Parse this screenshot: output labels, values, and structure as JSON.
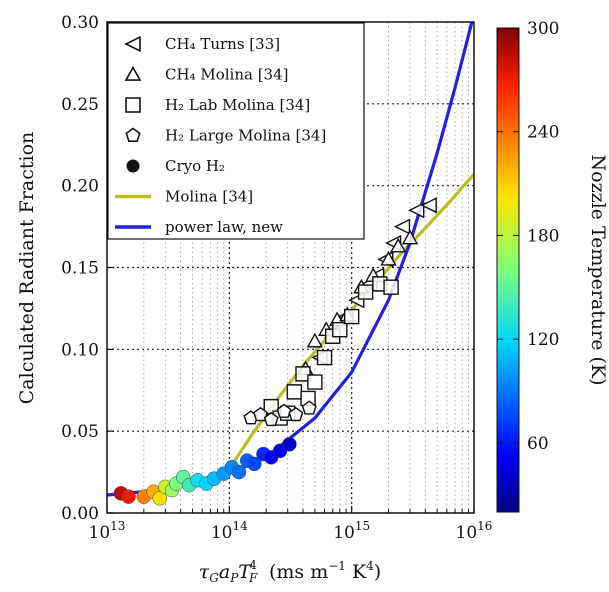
{
  "chart_data": {
    "type": "scatter",
    "xlabel": "τ_G a_P T_F^4 (ms m⁻¹ K⁴)",
    "ylabel": "Calculated Radiant Fraction",
    "x_scale": "log",
    "xlim": [
      10000000000000.0,
      1e+16
    ],
    "ylim": [
      0.0,
      0.3
    ],
    "x_ticks": [
      {
        "value": 10000000000000.0,
        "base": "10",
        "exp": "13"
      },
      {
        "value": 100000000000000.0,
        "base": "10",
        "exp": "14"
      },
      {
        "value": 1000000000000000.0,
        "base": "10",
        "exp": "15"
      },
      {
        "value": 1e+16,
        "base": "10",
        "exp": "16"
      }
    ],
    "y_ticks": [
      "0.00",
      "0.05",
      "0.10",
      "0.15",
      "0.20",
      "0.25",
      "0.30"
    ],
    "grid": "dotted, behind legend",
    "colorbar": {
      "label": "Nozzle Temperature (K)",
      "ticks": [
        "60",
        "120",
        "180",
        "240",
        "300"
      ],
      "range": [
        20,
        300
      ],
      "colormap": "jet"
    },
    "legend": {
      "position": "top-left",
      "entries": [
        {
          "marker": "triangle-left",
          "label": "CH₄ Turns [33]"
        },
        {
          "marker": "triangle-up",
          "label": "CH₄ Molina [34]"
        },
        {
          "marker": "square",
          "label": "H₂ Lab Molina [34]"
        },
        {
          "marker": "pentagon",
          "label": "H₂ Large Molina [34]"
        },
        {
          "marker": "circle",
          "label": "Cryo H₂"
        },
        {
          "marker": "line",
          "color": "#bdbd1f",
          "label": "Molina [34]"
        },
        {
          "marker": "line",
          "color": "#2020dd",
          "label": "power law, new"
        }
      ]
    },
    "series": [
      {
        "name": "CH₄ Turns [33]",
        "marker": "triangle-left",
        "points": [
          [
            1100000000000000.0,
            0.13
          ],
          [
            1400000000000000.0,
            0.14
          ],
          [
            1600000000000000.0,
            0.145
          ],
          [
            1900000000000000.0,
            0.155
          ],
          [
            2200000000000000.0,
            0.165
          ],
          [
            2600000000000000.0,
            0.175
          ],
          [
            3400000000000000.0,
            0.185
          ],
          [
            4300000000000000.0,
            0.188
          ],
          [
            550000000000000.0,
            0.095
          ],
          [
            700000000000000.0,
            0.11
          ],
          [
            900000000000000.0,
            0.12
          ]
        ]
      },
      {
        "name": "CH₄ Molina [34]",
        "marker": "triangle-up",
        "points": [
          [
            420000000000000.0,
            0.088
          ],
          [
            500000000000000.0,
            0.105
          ],
          [
            620000000000000.0,
            0.112
          ],
          [
            760000000000000.0,
            0.118
          ],
          [
            920000000000000.0,
            0.121
          ],
          [
            1200000000000000.0,
            0.138
          ],
          [
            1500000000000000.0,
            0.145
          ],
          [
            2000000000000000.0,
            0.155
          ],
          [
            2400000000000000.0,
            0.163
          ],
          [
            3000000000000000.0,
            0.168
          ]
        ]
      },
      {
        "name": "H₂ Lab Molina [34]",
        "marker": "square",
        "points": [
          [
            220000000000000.0,
            0.065
          ],
          [
            260000000000000.0,
            0.058
          ],
          [
            300000000000000.0,
            0.061
          ],
          [
            340000000000000.0,
            0.074
          ],
          [
            400000000000000.0,
            0.085
          ],
          [
            440000000000000.0,
            0.07
          ],
          [
            500000000000000.0,
            0.08
          ],
          [
            600000000000000.0,
            0.095
          ],
          [
            700000000000000.0,
            0.108
          ],
          [
            800000000000000.0,
            0.112
          ],
          [
            1000000000000000.0,
            0.12
          ],
          [
            1300000000000000.0,
            0.135
          ],
          [
            1700000000000000.0,
            0.14
          ],
          [
            2100000000000000.0,
            0.138
          ]
        ]
      },
      {
        "name": "H₂ Large Molina [34]",
        "marker": "pentagon",
        "points": [
          [
            150000000000000.0,
            0.058
          ],
          [
            180000000000000.0,
            0.06
          ],
          [
            220000000000000.0,
            0.057
          ],
          [
            280000000000000.0,
            0.062
          ],
          [
            350000000000000.0,
            0.06
          ],
          [
            450000000000000.0,
            0.064
          ]
        ]
      },
      {
        "name": "Cryo H₂",
        "marker": "circle",
        "points": [
          [
            13000000000000.0,
            0.012,
            285
          ],
          [
            15000000000000.0,
            0.01,
            270
          ],
          [
            20000000000000.0,
            0.01,
            235
          ],
          [
            24000000000000.0,
            0.013,
            220
          ],
          [
            27000000000000.0,
            0.009,
            205
          ],
          [
            30000000000000.0,
            0.016,
            185
          ],
          [
            34000000000000.0,
            0.014,
            170
          ],
          [
            37000000000000.0,
            0.018,
            160
          ],
          [
            42000000000000.0,
            0.022,
            150
          ],
          [
            47000000000000.0,
            0.017,
            140
          ],
          [
            55000000000000.0,
            0.02,
            125
          ],
          [
            65000000000000.0,
            0.018,
            118
          ],
          [
            75000000000000.0,
            0.021,
            110
          ],
          [
            90000000000000.0,
            0.024,
            100
          ],
          [
            105000000000000.0,
            0.028,
            95
          ],
          [
            120000000000000.0,
            0.025,
            88
          ],
          [
            140000000000000.0,
            0.032,
            82
          ],
          [
            160000000000000.0,
            0.03,
            75
          ],
          [
            190000000000000.0,
            0.036,
            65
          ],
          [
            220000000000000.0,
            0.034,
            55
          ],
          [
            260000000000000.0,
            0.038,
            48
          ],
          [
            310000000000000.0,
            0.042,
            40
          ]
        ]
      }
    ],
    "lines": [
      {
        "name": "Molina [34]",
        "color": "#bdbd1f",
        "points": [
          [
            100000000000000.0,
            0.027
          ],
          [
            160000000000000.0,
            0.05
          ],
          [
            250000000000000.0,
            0.07
          ],
          [
            400000000000000.0,
            0.09
          ],
          [
            630000000000000.0,
            0.107
          ],
          [
            1000000000000000.0,
            0.124
          ],
          [
            1600000000000000.0,
            0.141
          ],
          [
            2500000000000000.0,
            0.158
          ],
          [
            4000000000000000.0,
            0.174
          ],
          [
            6300000000000000.0,
            0.19
          ],
          [
            1e+16,
            0.207
          ]
        ]
      },
      {
        "name": "power law, new",
        "color": "#2020dd",
        "points": [
          [
            10000000000000.0,
            0.011
          ],
          [
            20000000000000.0,
            0.013
          ],
          [
            50000000000000.0,
            0.018
          ],
          [
            100000000000000.0,
            0.024
          ],
          [
            200000000000000.0,
            0.034
          ],
          [
            500000000000000.0,
            0.058
          ],
          [
            1000000000000000.0,
            0.086
          ],
          [
            2000000000000000.0,
            0.13
          ],
          [
            3000000000000000.0,
            0.165
          ],
          [
            5000000000000000.0,
            0.22
          ],
          [
            7000000000000000.0,
            0.26
          ],
          [
            1e+16,
            0.305
          ]
        ]
      }
    ]
  }
}
